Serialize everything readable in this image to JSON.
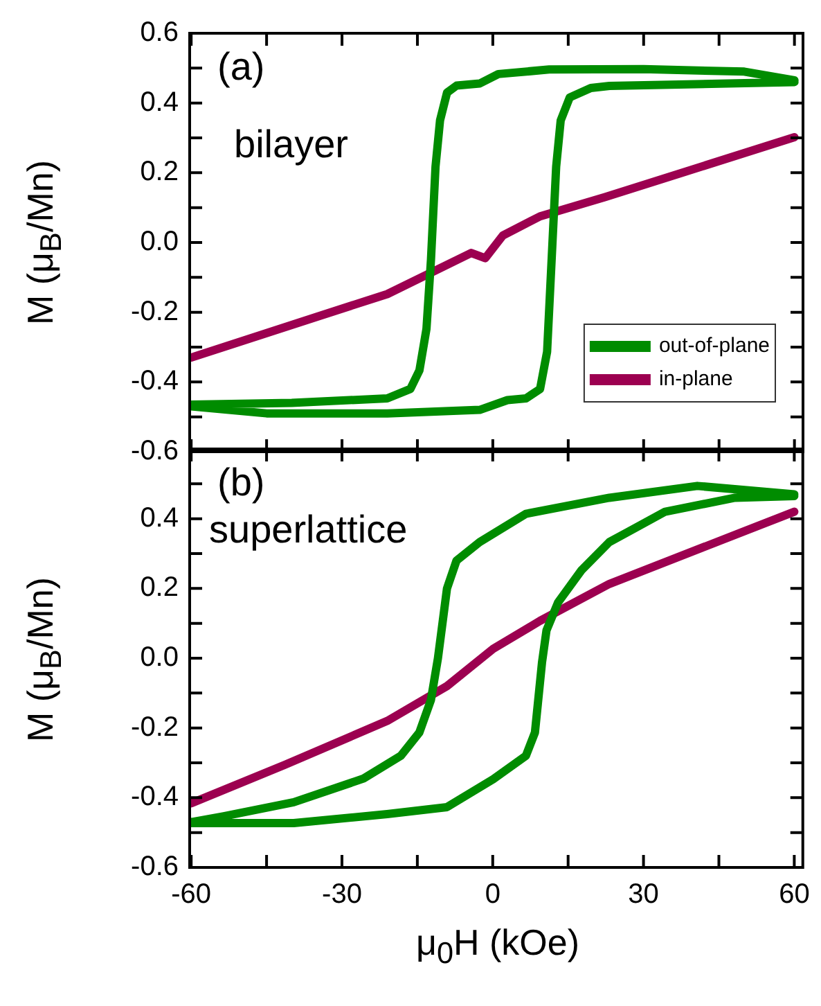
{
  "chart_data": [
    {
      "type": "line",
      "ylabel": "M (μ$_{B}$/Mn)",
      "annotations": [
        "(a)",
        "bilayer"
      ],
      "legend": "bottom right",
      "tick_labels": "y",
      "xlim": [
        -60.3,
        61.7
      ],
      "xticks": [
        -60,
        {
          "value": -45,
          "label": null
        },
        -30,
        {
          "value": -15,
          "label": null
        },
        0,
        {
          "value": 15,
          "label": null
        },
        30,
        {
          "value": 45,
          "label": null
        },
        60
      ],
      "ylim": [
        -0.6,
        0.6
      ],
      "yticks": [
        -0.6,
        {
          "value": -0.5,
          "label": null
        },
        -0.4,
        {
          "value": -0.3,
          "label": null
        },
        -0.2,
        {
          "value": -0.1,
          "label": null
        },
        {
          "value": 0,
          "label": "0.0"
        },
        {
          "value": 0.1,
          "label": null
        },
        0.2,
        {
          "value": 0.3,
          "label": null
        },
        0.4,
        {
          "value": 0.5,
          "label": null
        },
        0.6
      ],
      "series": [
        {
          "name": "out-of-plane",
          "color": "#008c00",
          "x": [
            60,
            50,
            30,
            11.2,
            1.1,
            -2.6,
            -7.2,
            -9.1,
            -10.5,
            -11.4,
            -12.3,
            -13.2,
            -14.6,
            -16.4,
            -21,
            -40,
            -60,
            -60,
            -45,
            -21,
            -2.6,
            2.9,
            6.6,
            9.4,
            10.8,
            11.7,
            12.6,
            13.5,
            15.3,
            19.5,
            23.2,
            60
          ],
          "values": [
            0.465,
            0.49,
            0.497,
            0.496,
            0.483,
            0.456,
            0.45,
            0.43,
            0.35,
            0.217,
            -0.049,
            -0.248,
            -0.367,
            -0.42,
            -0.447,
            -0.46,
            -0.465,
            -0.47,
            -0.49,
            -0.49,
            -0.48,
            -0.452,
            -0.447,
            -0.42,
            -0.313,
            -0.049,
            0.217,
            0.35,
            0.416,
            0.443,
            0.449,
            0.46
          ]
        },
        {
          "name": "in-plane",
          "color": "#9c0050",
          "x": [
            -60,
            -35,
            -21,
            -4.3,
            -1.5,
            2,
            9.4,
            22.3,
            60
          ],
          "values": [
            -0.33,
            -0.213,
            -0.148,
            -0.03,
            -0.045,
            0.02,
            0.075,
            0.13,
            0.302
          ]
        }
      ]
    },
    {
      "type": "line",
      "xlabel": "μ$_{0}$H (kOe)",
      "ylabel": "M (μ$_{B}$/Mn)",
      "annotations": [
        "(b)",
        "superlattice"
      ],
      "xlim": [
        -60.3,
        61.7
      ],
      "xticks": [
        -60,
        {
          "value": -45,
          "label": null
        },
        -30,
        {
          "value": -15,
          "label": null
        },
        0,
        {
          "value": 15,
          "label": null
        },
        30,
        {
          "value": 45,
          "label": null
        },
        60
      ],
      "ylim": [
        -0.6,
        0.6
      ],
      "yticks": [
        -0.6,
        {
          "value": -0.5,
          "label": null
        },
        -0.4,
        {
          "value": -0.3,
          "label": null
        },
        -0.2,
        {
          "value": -0.1,
          "label": null
        },
        {
          "value": 0,
          "label": "0.0"
        },
        {
          "value": 0.1,
          "label": null
        },
        0.2,
        {
          "value": 0.3,
          "label": null
        },
        0.4,
        {
          "value": 0.5,
          "label": null
        },
        {
          "value": 0.6,
          "label": null
        }
      ],
      "series": [
        {
          "color": "#008c00",
          "x": [
            60,
            40.7,
            23.2,
            6.6,
            -2.6,
            -7.2,
            -9.1,
            -10.9,
            -12.3,
            -14.6,
            -18.3,
            -25.7,
            -39.6,
            -53.5,
            -60,
            -60,
            -39.6,
            -21,
            -9.1,
            0.1,
            6.6,
            8.4,
            9.8,
            10.7,
            13,
            17.7,
            23.2,
            34.3,
            48.2,
            60
          ],
          "values": [
            0.47,
            0.494,
            0.46,
            0.414,
            0.333,
            0.28,
            0.2,
            0,
            -0.12,
            -0.213,
            -0.28,
            -0.345,
            -0.413,
            -0.453,
            -0.47,
            -0.473,
            -0.473,
            -0.447,
            -0.427,
            -0.347,
            -0.28,
            -0.213,
            -0.013,
            0.08,
            0.16,
            0.253,
            0.333,
            0.42,
            0.46,
            0.465
          ]
        },
        {
          "color": "#9c0050",
          "x": [
            -60,
            -41.4,
            -21,
            -9.1,
            0.1,
            9.4,
            23.2,
            60
          ],
          "values": [
            -0.416,
            -0.306,
            -0.18,
            -0.08,
            0.027,
            0.107,
            0.213,
            0.42
          ]
        }
      ]
    }
  ]
}
